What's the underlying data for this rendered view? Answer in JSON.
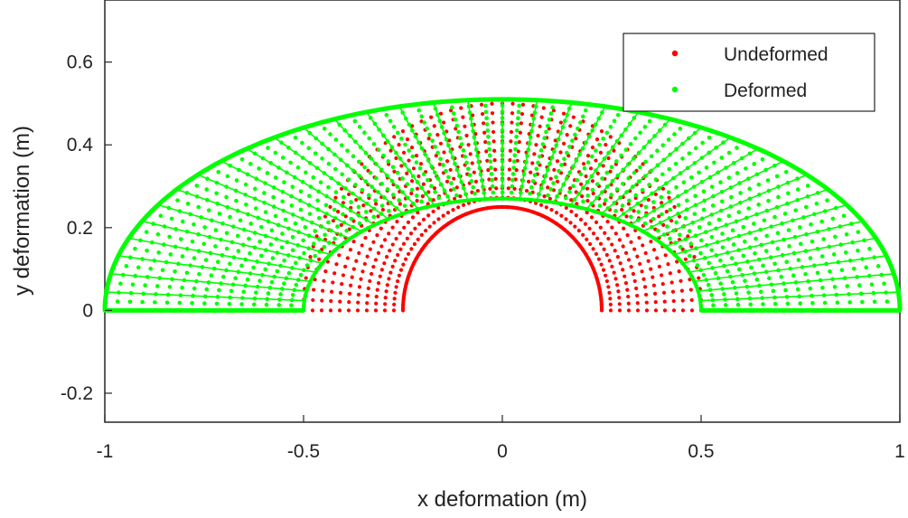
{
  "chart_data": {
    "type": "scatter",
    "title": "",
    "xlabel": "x deformation (m)",
    "ylabel": "y deformation (m)",
    "xlim": [
      -1,
      1
    ],
    "ylim": [
      -0.27,
      0.75
    ],
    "xticks": [
      -1,
      -0.5,
      0,
      0.5,
      1
    ],
    "xtick_labels": [
      "-1",
      "-0.5",
      "0",
      "0.5",
      "1"
    ],
    "yticks": [
      -0.2,
      0,
      0.2,
      0.4,
      0.6
    ],
    "ytick_labels": [
      "-0.2",
      "0",
      "0.2",
      "0.4",
      "0.6"
    ],
    "grid": false,
    "legend_position": "top-right",
    "series": [
      {
        "name": "Undeformed",
        "color": "#ff0000",
        "marker": "dot",
        "shape": "half-annulus",
        "inner_radius": 0.25,
        "outer_radius": 0.5,
        "center": [
          0,
          0
        ]
      },
      {
        "name": "Deformed",
        "color": "#00ff00",
        "marker": "dot",
        "shape": "deformed half-annulus",
        "inner_span_x": [
          -0.5,
          0.5
        ],
        "inner_peak_y": 0.27,
        "outer_span_x": [
          -1,
          1
        ],
        "outer_peak_y": 0.51
      }
    ]
  }
}
